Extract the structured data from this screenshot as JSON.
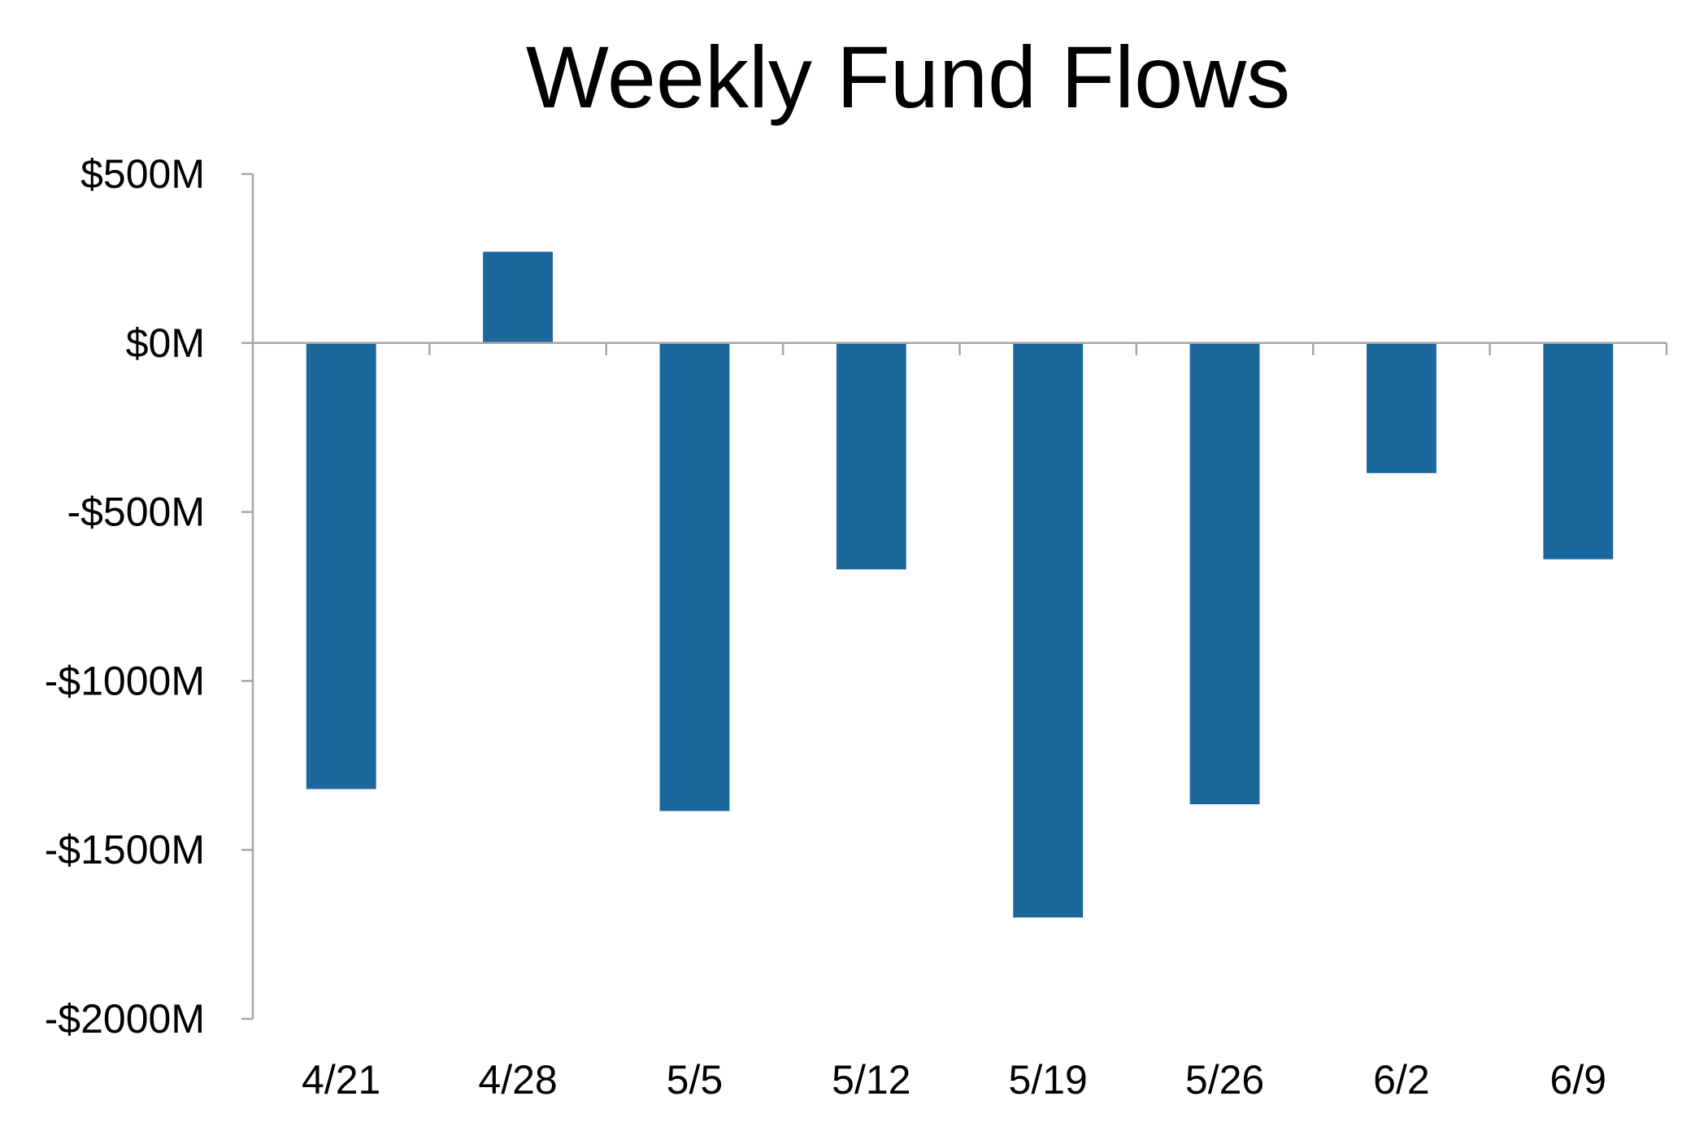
{
  "chart_data": {
    "type": "bar",
    "title": "Weekly Fund Flows",
    "xlabel": "",
    "ylabel": "",
    "categories": [
      "4/21",
      "4/28",
      "5/5",
      "5/12",
      "5/19",
      "5/26",
      "6/2",
      "6/9"
    ],
    "series": [
      {
        "values": [
          -1320,
          270,
          -1385,
          -670,
          -1700,
          -1365,
          -385,
          -640
        ]
      }
    ],
    "ylim": [
      -2000,
      500
    ],
    "yticks": [
      500,
      0,
      -500,
      -1000,
      -1500,
      -2000
    ],
    "ytick_labels": [
      "$500M",
      "$0M",
      "-$500M",
      "-$1000M",
      "-$1500M",
      "-$2000M"
    ],
    "grid": false,
    "legend": "none",
    "colors": {
      "bar": "#1b679c",
      "axis": "#a6a6a6",
      "text": "#000000"
    }
  }
}
